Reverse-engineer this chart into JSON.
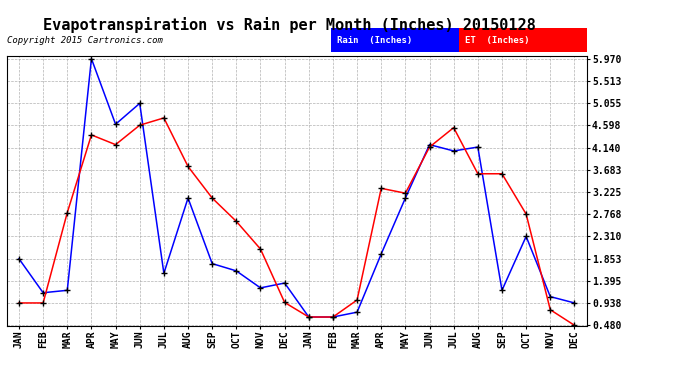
{
  "title": "Evapotranspiration vs Rain per Month (Inches) 20150128",
  "copyright": "Copyright 2015 Cartronics.com",
  "x_labels": [
    "JAN",
    "FEB",
    "MAR",
    "APR",
    "MAY",
    "JUN",
    "JUL",
    "AUG",
    "SEP",
    "OCT",
    "NOV",
    "DEC",
    "JAN",
    "FEB",
    "MAR",
    "APR",
    "MAY",
    "JUN",
    "JUL",
    "AUG",
    "SEP",
    "OCT",
    "NOV",
    "DEC"
  ],
  "rain_values": [
    1.85,
    1.15,
    1.2,
    5.97,
    4.62,
    5.05,
    1.55,
    3.1,
    1.75,
    1.6,
    1.25,
    1.35,
    0.65,
    0.65,
    0.75,
    1.95,
    3.1,
    4.2,
    4.07,
    4.15,
    1.2,
    2.31,
    1.07,
    0.94
  ],
  "et_values": [
    0.94,
    0.94,
    2.8,
    4.4,
    4.2,
    4.6,
    4.75,
    3.75,
    3.1,
    2.62,
    2.05,
    0.95,
    0.65,
    0.65,
    1.0,
    3.3,
    3.2,
    4.15,
    4.55,
    3.6,
    3.6,
    2.77,
    0.8,
    0.48
  ],
  "y_ticks": [
    0.48,
    0.938,
    1.395,
    1.853,
    2.31,
    2.768,
    3.225,
    3.683,
    4.14,
    4.598,
    5.055,
    5.513,
    5.97
  ],
  "rain_color": "#0000FF",
  "et_color": "#FF0000",
  "background_color": "#FFFFFF",
  "grid_color": "#AAAAAA",
  "title_fontsize": 11,
  "legend_rain_label": "Rain  (Inches)",
  "legend_et_label": "ET  (Inches)",
  "y_min": 0.48,
  "y_max": 5.97
}
